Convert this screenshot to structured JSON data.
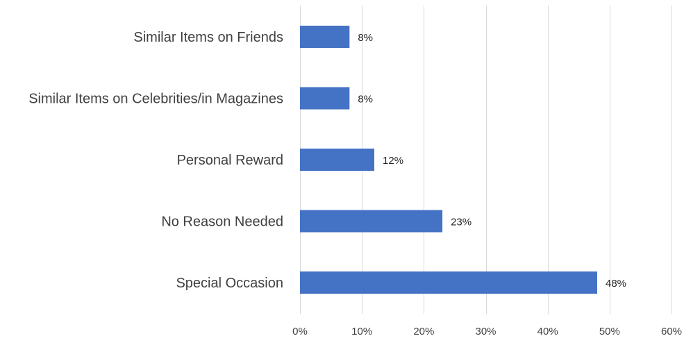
{
  "chart_data": {
    "type": "bar",
    "orientation": "horizontal",
    "categories": [
      "Similar Items on Friends",
      "Similar Items on Celebrities/in Magazines",
      "Personal Reward",
      "No Reason Needed",
      "Special Occasion"
    ],
    "values": [
      8,
      8,
      12,
      23,
      48
    ],
    "data_labels": [
      "8%",
      "8%",
      "12%",
      "23%",
      "48%"
    ],
    "xlim": [
      0,
      60
    ],
    "x_ticks": [
      0,
      10,
      20,
      30,
      40,
      50,
      60
    ],
    "x_tick_labels": [
      "0%",
      "10%",
      "20%",
      "30%",
      "40%",
      "50%",
      "60%"
    ],
    "title": "",
    "xlabel": "",
    "ylabel": "",
    "grid": "vertical",
    "legend": "none",
    "bar_color": "#4472C4"
  }
}
